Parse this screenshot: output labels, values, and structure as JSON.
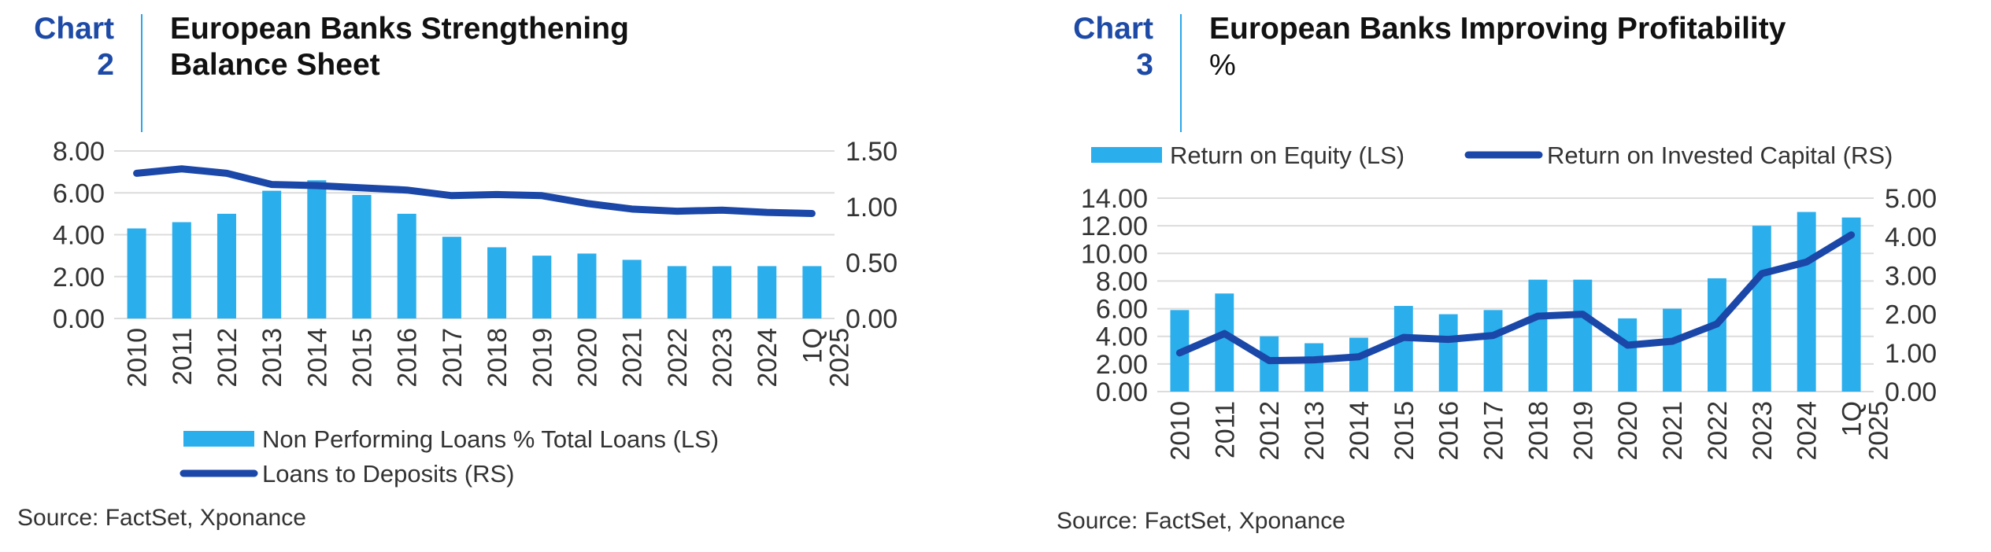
{
  "chart1": {
    "label": "Chart",
    "number": "2",
    "title_line1": "European Banks Strengthening",
    "title_line2": "Balance Sheet",
    "source": "Source: FactSet, Xponance",
    "bar_color": "#2aaeec",
    "line_color": "#1a47a8"
  },
  "chart2": {
    "label": "Chart",
    "number": "3",
    "title": "European Banks Improving Profitability",
    "subtitle": "%",
    "source": "Source: FactSet, Xponance",
    "bar_color": "#2aaeec",
    "line_color": "#1a47a8"
  },
  "chart_data": [
    {
      "type": "bar",
      "title": "European Banks Strengthening Balance Sheet",
      "categories": [
        "2010",
        "2011",
        "2012",
        "2013",
        "2014",
        "2015",
        "2016",
        "2017",
        "2018",
        "2019",
        "2020",
        "2021",
        "2022",
        "2023",
        "2024",
        "1Q 2025"
      ],
      "series": [
        {
          "name": "Non Performing Loans % Total Loans (LS)",
          "type": "bar",
          "axis": "left",
          "values": [
            4.3,
            4.6,
            5.0,
            6.1,
            6.6,
            5.9,
            5.0,
            3.9,
            3.4,
            3.0,
            3.1,
            2.8,
            2.5,
            2.5,
            2.5,
            2.5
          ]
        },
        {
          "name": "Loans to Deposits (RS)",
          "type": "line",
          "axis": "right",
          "values": [
            1.3,
            1.34,
            1.3,
            1.2,
            1.19,
            1.17,
            1.15,
            1.1,
            1.11,
            1.1,
            1.03,
            0.98,
            0.96,
            0.97,
            0.95,
            0.94
          ]
        }
      ],
      "left_axis": {
        "ylim": [
          0,
          8
        ],
        "ticks": [
          "0.00",
          "2.00",
          "4.00",
          "6.00",
          "8.00"
        ]
      },
      "right_axis": {
        "ylim": [
          0,
          1.5
        ],
        "ticks": [
          "0.00",
          "0.50",
          "1.00",
          "1.50"
        ]
      },
      "grid": true,
      "legend": "bottom"
    },
    {
      "type": "bar",
      "title": "European Banks Improving Profitability",
      "categories": [
        "2010",
        "2011",
        "2012",
        "2013",
        "2014",
        "2015",
        "2016",
        "2017",
        "2018",
        "2019",
        "2020",
        "2021",
        "2022",
        "2023",
        "2024",
        "1Q 2025"
      ],
      "series": [
        {
          "name": "Return on Equity (LS)",
          "type": "bar",
          "axis": "left",
          "values": [
            5.9,
            7.1,
            4.0,
            3.5,
            3.9,
            6.2,
            5.6,
            5.9,
            8.1,
            8.1,
            5.3,
            6.0,
            8.2,
            12.0,
            13.0,
            12.6
          ]
        },
        {
          "name": "Return on Invested Capital (RS)",
          "type": "line",
          "axis": "right",
          "values": [
            1.0,
            1.5,
            0.8,
            0.82,
            0.9,
            1.4,
            1.35,
            1.45,
            1.95,
            2.0,
            1.2,
            1.3,
            1.75,
            3.05,
            3.35,
            4.05
          ]
        }
      ],
      "left_axis": {
        "ylim": [
          0,
          14
        ],
        "ticks": [
          "0.00",
          "2.00",
          "4.00",
          "6.00",
          "8.00",
          "10.00",
          "12.00",
          "14.00"
        ]
      },
      "right_axis": {
        "ylim": [
          0,
          5
        ],
        "ticks": [
          "0.00",
          "1.00",
          "2.00",
          "3.00",
          "4.00",
          "5.00"
        ]
      },
      "grid": true,
      "legend": "top"
    }
  ]
}
